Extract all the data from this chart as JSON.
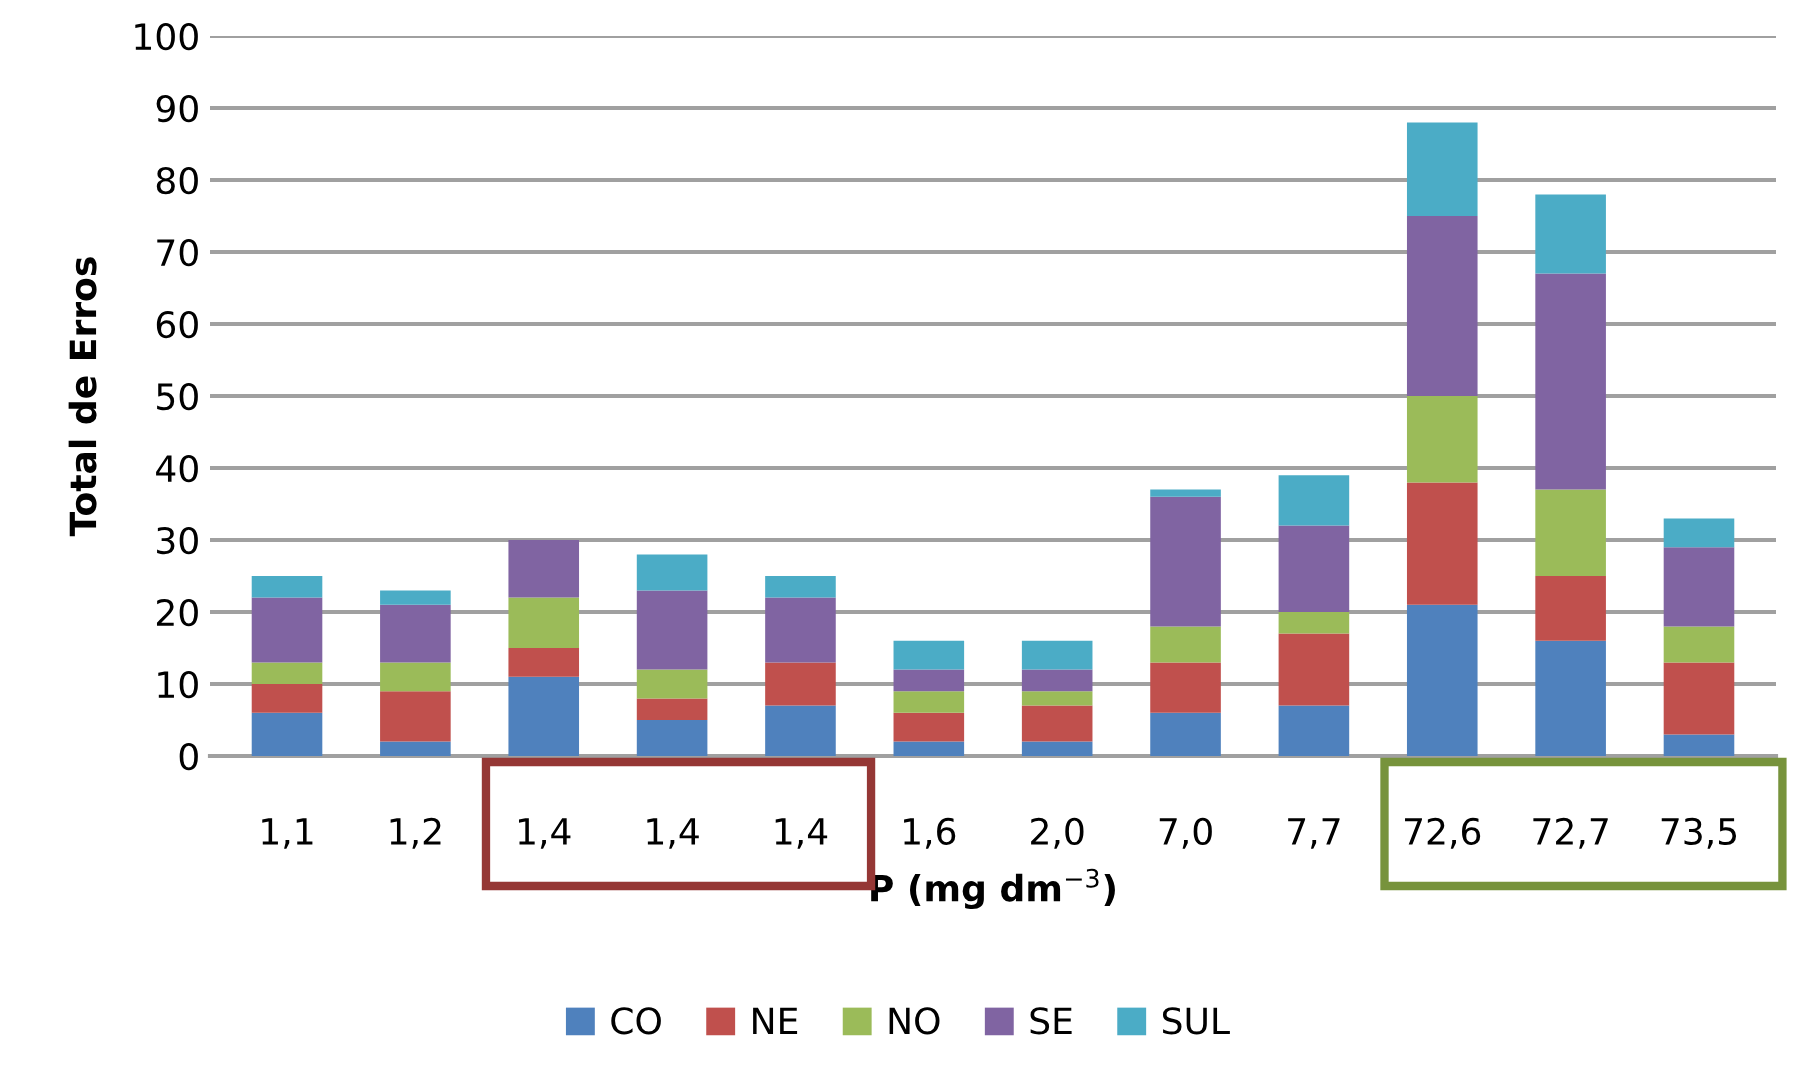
{
  "chart_data": {
    "type": "bar",
    "stacked": true,
    "xlabel": "P (mg dm$^{−3}$)",
    "ylabel": "Total de Erros",
    "categories": [
      "1,1",
      "1,2",
      "1,4",
      "1,4",
      "1,4",
      "1,6",
      "2,0",
      "7,0",
      "7,7",
      "72,6",
      "72,7",
      "73,5"
    ],
    "series": [
      {
        "name": "CO",
        "color": "#4f81bd",
        "values": [
          6,
          2,
          11,
          5,
          7,
          2,
          2,
          6,
          7,
          21,
          16,
          3
        ]
      },
      {
        "name": "NE",
        "color": "#c0504d",
        "values": [
          4,
          7,
          4,
          3,
          6,
          4,
          5,
          7,
          10,
          17,
          9,
          10
        ]
      },
      {
        "name": "NO",
        "color": "#9bbb59",
        "values": [
          3,
          4,
          7,
          4,
          0,
          3,
          2,
          5,
          3,
          12,
          12,
          5
        ]
      },
      {
        "name": "SE",
        "color": "#8064a2",
        "values": [
          9,
          8,
          8,
          11,
          9,
          3,
          3,
          18,
          12,
          25,
          30,
          11
        ]
      },
      {
        "name": "SUL",
        "color": "#4bacc6",
        "values": [
          3,
          2,
          0,
          5,
          3,
          4,
          4,
          1,
          7,
          13,
          11,
          4
        ]
      }
    ],
    "ylim": [
      0,
      100
    ],
    "yticks": [
      0,
      10,
      20,
      30,
      40,
      50,
      60,
      70,
      80,
      90,
      100
    ],
    "grid": "y",
    "legend": "bottom"
  }
}
